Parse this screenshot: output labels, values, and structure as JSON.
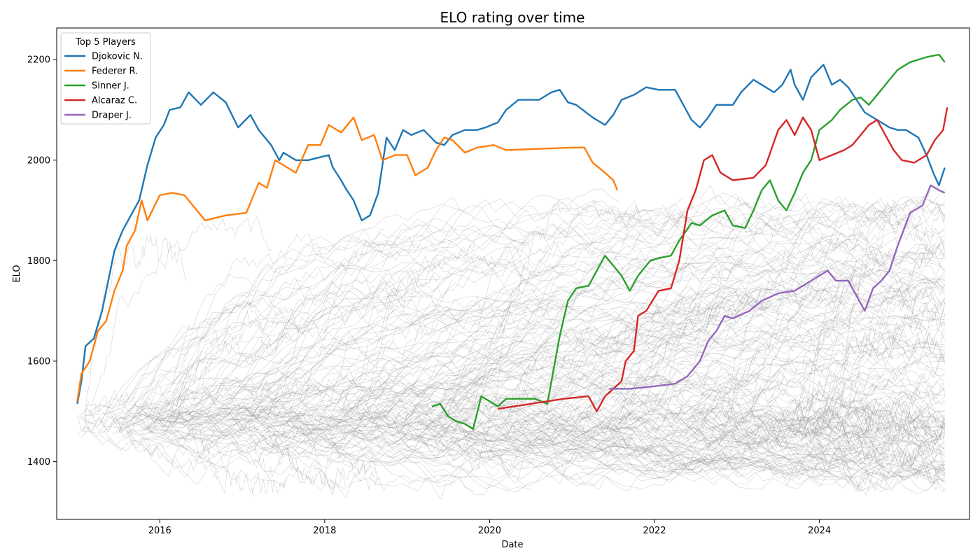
{
  "chart_data": {
    "type": "line",
    "title": "ELO rating over time",
    "xlabel": "Date",
    "ylabel": "ELO",
    "xlim": [
      2014.75,
      2025.82
    ],
    "ylim": [
      1285,
      2263
    ],
    "x_ticks": [
      2016,
      2018,
      2020,
      2022,
      2024
    ],
    "y_ticks": [
      1400,
      1600,
      1800,
      2000,
      2200
    ],
    "grid": false,
    "legend": {
      "title": "Top 5 Players",
      "placement": "top-left"
    },
    "background_series": {
      "color": "#808080",
      "description_count": 300
    },
    "series": [
      {
        "name": "Djokovic N.",
        "color": "#1f77b4",
        "points": [
          [
            2015.0,
            1515
          ],
          [
            2015.05,
            1560
          ],
          [
            2015.1,
            1630
          ],
          [
            2015.2,
            1645
          ],
          [
            2015.3,
            1700
          ],
          [
            2015.4,
            1780
          ],
          [
            2015.45,
            1820
          ],
          [
            2015.55,
            1860
          ],
          [
            2015.65,
            1890
          ],
          [
            2015.75,
            1920
          ],
          [
            2015.85,
            1990
          ],
          [
            2015.95,
            2045
          ],
          [
            2016.05,
            2070
          ],
          [
            2016.12,
            2100
          ],
          [
            2016.25,
            2105
          ],
          [
            2016.35,
            2135
          ],
          [
            2016.5,
            2110
          ],
          [
            2016.65,
            2135
          ],
          [
            2016.8,
            2115
          ],
          [
            2016.95,
            2065
          ],
          [
            2017.1,
            2090
          ],
          [
            2017.2,
            2060
          ],
          [
            2017.25,
            2050
          ],
          [
            2017.35,
            2030
          ],
          [
            2017.45,
            2000
          ],
          [
            2017.5,
            2015
          ],
          [
            2017.65,
            2000
          ],
          [
            2017.8,
            2000
          ],
          [
            2018.05,
            2010
          ],
          [
            2018.1,
            1985
          ],
          [
            2018.2,
            1960
          ],
          [
            2018.25,
            1945
          ],
          [
            2018.35,
            1920
          ],
          [
            2018.45,
            1880
          ],
          [
            2018.55,
            1890
          ],
          [
            2018.65,
            1935
          ],
          [
            2018.75,
            2045
          ],
          [
            2018.85,
            2020
          ],
          [
            2018.95,
            2060
          ],
          [
            2019.05,
            2050
          ],
          [
            2019.2,
            2060
          ],
          [
            2019.35,
            2035
          ],
          [
            2019.45,
            2030
          ],
          [
            2019.55,
            2050
          ],
          [
            2019.7,
            2060
          ],
          [
            2019.85,
            2060
          ],
          [
            2019.95,
            2065
          ],
          [
            2020.1,
            2075
          ],
          [
            2020.2,
            2100
          ],
          [
            2020.35,
            2120
          ],
          [
            2020.6,
            2120
          ],
          [
            2020.75,
            2135
          ],
          [
            2020.85,
            2140
          ],
          [
            2020.95,
            2115
          ],
          [
            2021.05,
            2110
          ],
          [
            2021.25,
            2085
          ],
          [
            2021.4,
            2070
          ],
          [
            2021.5,
            2090
          ],
          [
            2021.6,
            2120
          ],
          [
            2021.75,
            2130
          ],
          [
            2021.9,
            2145
          ],
          [
            2022.05,
            2140
          ],
          [
            2022.25,
            2140
          ],
          [
            2022.35,
            2110
          ],
          [
            2022.45,
            2080
          ],
          [
            2022.55,
            2065
          ],
          [
            2022.65,
            2085
          ],
          [
            2022.75,
            2110
          ],
          [
            2022.95,
            2110
          ],
          [
            2023.05,
            2135
          ],
          [
            2023.2,
            2160
          ],
          [
            2023.35,
            2145
          ],
          [
            2023.45,
            2135
          ],
          [
            2023.55,
            2150
          ],
          [
            2023.65,
            2180
          ],
          [
            2023.7,
            2150
          ],
          [
            2023.8,
            2120
          ],
          [
            2023.9,
            2165
          ],
          [
            2024.05,
            2190
          ],
          [
            2024.15,
            2150
          ],
          [
            2024.25,
            2160
          ],
          [
            2024.35,
            2145
          ],
          [
            2024.45,
            2120
          ],
          [
            2024.55,
            2095
          ],
          [
            2024.7,
            2080
          ],
          [
            2024.85,
            2065
          ],
          [
            2024.95,
            2060
          ],
          [
            2025.05,
            2060
          ],
          [
            2025.2,
            2045
          ],
          [
            2025.3,
            2010
          ],
          [
            2025.38,
            1975
          ],
          [
            2025.45,
            1950
          ],
          [
            2025.52,
            1985
          ]
        ]
      },
      {
        "name": "Federer R.",
        "color": "#ff7f0e",
        "points": [
          [
            2015.0,
            1520
          ],
          [
            2015.05,
            1575
          ],
          [
            2015.15,
            1600
          ],
          [
            2015.25,
            1660
          ],
          [
            2015.35,
            1680
          ],
          [
            2015.45,
            1740
          ],
          [
            2015.55,
            1780
          ],
          [
            2015.6,
            1830
          ],
          [
            2015.7,
            1860
          ],
          [
            2015.78,
            1920
          ],
          [
            2015.85,
            1880
          ],
          [
            2016.0,
            1930
          ],
          [
            2016.15,
            1935
          ],
          [
            2016.3,
            1930
          ],
          [
            2016.45,
            1900
          ],
          [
            2016.55,
            1880
          ],
          [
            2016.8,
            1890
          ],
          [
            2017.05,
            1895
          ],
          [
            2017.2,
            1955
          ],
          [
            2017.3,
            1945
          ],
          [
            2017.4,
            2000
          ],
          [
            2017.55,
            1985
          ],
          [
            2017.65,
            1975
          ],
          [
            2017.8,
            2030
          ],
          [
            2017.95,
            2030
          ],
          [
            2018.05,
            2070
          ],
          [
            2018.2,
            2055
          ],
          [
            2018.35,
            2085
          ],
          [
            2018.45,
            2040
          ],
          [
            2018.6,
            2050
          ],
          [
            2018.7,
            2000
          ],
          [
            2018.85,
            2010
          ],
          [
            2019.0,
            2010
          ],
          [
            2019.1,
            1970
          ],
          [
            2019.25,
            1985
          ],
          [
            2019.35,
            2020
          ],
          [
            2019.45,
            2045
          ],
          [
            2019.55,
            2040
          ],
          [
            2019.7,
            2015
          ],
          [
            2019.85,
            2025
          ],
          [
            2020.05,
            2030
          ],
          [
            2020.2,
            2020
          ],
          [
            2021.0,
            2025
          ],
          [
            2021.15,
            2025
          ],
          [
            2021.25,
            1995
          ],
          [
            2021.4,
            1975
          ],
          [
            2021.5,
            1960
          ],
          [
            2021.55,
            1940
          ]
        ]
      },
      {
        "name": "Sinner J.",
        "color": "#2ca02c",
        "points": [
          [
            2019.3,
            1510
          ],
          [
            2019.4,
            1515
          ],
          [
            2019.5,
            1490
          ],
          [
            2019.6,
            1480
          ],
          [
            2019.7,
            1475
          ],
          [
            2019.8,
            1465
          ],
          [
            2019.9,
            1530
          ],
          [
            2020.0,
            1520
          ],
          [
            2020.1,
            1510
          ],
          [
            2020.2,
            1525
          ],
          [
            2020.55,
            1525
          ],
          [
            2020.7,
            1515
          ],
          [
            2020.75,
            1560
          ],
          [
            2020.85,
            1650
          ],
          [
            2020.95,
            1720
          ],
          [
            2021.05,
            1745
          ],
          [
            2021.2,
            1750
          ],
          [
            2021.3,
            1780
          ],
          [
            2021.4,
            1810
          ],
          [
            2021.5,
            1790
          ],
          [
            2021.6,
            1770
          ],
          [
            2021.7,
            1740
          ],
          [
            2021.8,
            1770
          ],
          [
            2021.95,
            1800
          ],
          [
            2022.05,
            1805
          ],
          [
            2022.2,
            1810
          ],
          [
            2022.3,
            1840
          ],
          [
            2022.45,
            1875
          ],
          [
            2022.55,
            1870
          ],
          [
            2022.7,
            1890
          ],
          [
            2022.85,
            1900
          ],
          [
            2022.95,
            1870
          ],
          [
            2023.1,
            1865
          ],
          [
            2023.2,
            1900
          ],
          [
            2023.3,
            1940
          ],
          [
            2023.4,
            1960
          ],
          [
            2023.5,
            1920
          ],
          [
            2023.6,
            1900
          ],
          [
            2023.7,
            1935
          ],
          [
            2023.8,
            1975
          ],
          [
            2023.9,
            2000
          ],
          [
            2024.0,
            2060
          ],
          [
            2024.15,
            2080
          ],
          [
            2024.25,
            2100
          ],
          [
            2024.4,
            2120
          ],
          [
            2024.5,
            2125
          ],
          [
            2024.6,
            2110
          ],
          [
            2024.75,
            2140
          ],
          [
            2024.85,
            2160
          ],
          [
            2024.95,
            2180
          ],
          [
            2025.1,
            2195
          ],
          [
            2025.3,
            2205
          ],
          [
            2025.45,
            2210
          ],
          [
            2025.52,
            2195
          ]
        ]
      },
      {
        "name": "Alcaraz C.",
        "color": "#d62728",
        "points": [
          [
            2020.1,
            1505
          ],
          [
            2020.5,
            1515
          ],
          [
            2020.9,
            1525
          ],
          [
            2021.2,
            1530
          ],
          [
            2021.3,
            1500
          ],
          [
            2021.4,
            1530
          ],
          [
            2021.5,
            1545
          ],
          [
            2021.6,
            1560
          ],
          [
            2021.65,
            1600
          ],
          [
            2021.75,
            1620
          ],
          [
            2021.8,
            1690
          ],
          [
            2021.9,
            1700
          ],
          [
            2022.05,
            1740
          ],
          [
            2022.2,
            1745
          ],
          [
            2022.3,
            1800
          ],
          [
            2022.4,
            1900
          ],
          [
            2022.5,
            1940
          ],
          [
            2022.6,
            2000
          ],
          [
            2022.7,
            2010
          ],
          [
            2022.8,
            1975
          ],
          [
            2022.95,
            1960
          ],
          [
            2023.2,
            1965
          ],
          [
            2023.35,
            1990
          ],
          [
            2023.5,
            2060
          ],
          [
            2023.6,
            2080
          ],
          [
            2023.7,
            2050
          ],
          [
            2023.8,
            2085
          ],
          [
            2023.9,
            2060
          ],
          [
            2024.0,
            2000
          ],
          [
            2024.15,
            2010
          ],
          [
            2024.3,
            2020
          ],
          [
            2024.4,
            2030
          ],
          [
            2024.5,
            2050
          ],
          [
            2024.6,
            2070
          ],
          [
            2024.7,
            2080
          ],
          [
            2024.8,
            2050
          ],
          [
            2024.9,
            2020
          ],
          [
            2025.0,
            2000
          ],
          [
            2025.15,
            1995
          ],
          [
            2025.3,
            2010
          ],
          [
            2025.4,
            2040
          ],
          [
            2025.5,
            2060
          ],
          [
            2025.55,
            2105
          ]
        ]
      },
      {
        "name": "Draper J.",
        "color": "#9467bd",
        "points": [
          [
            2021.45,
            1545
          ],
          [
            2021.7,
            1545
          ],
          [
            2022.0,
            1550
          ],
          [
            2022.25,
            1555
          ],
          [
            2022.4,
            1570
          ],
          [
            2022.55,
            1600
          ],
          [
            2022.65,
            1640
          ],
          [
            2022.75,
            1660
          ],
          [
            2022.85,
            1690
          ],
          [
            2022.95,
            1685
          ],
          [
            2023.15,
            1700
          ],
          [
            2023.3,
            1720
          ],
          [
            2023.5,
            1735
          ],
          [
            2023.7,
            1740
          ],
          [
            2023.85,
            1755
          ],
          [
            2024.0,
            1770
          ],
          [
            2024.1,
            1780
          ],
          [
            2024.2,
            1760
          ],
          [
            2024.35,
            1760
          ],
          [
            2024.45,
            1730
          ],
          [
            2024.55,
            1700
          ],
          [
            2024.65,
            1745
          ],
          [
            2024.75,
            1760
          ],
          [
            2024.85,
            1780
          ],
          [
            2024.95,
            1830
          ],
          [
            2025.1,
            1895
          ],
          [
            2025.25,
            1910
          ],
          [
            2025.35,
            1950
          ],
          [
            2025.45,
            1940
          ],
          [
            2025.52,
            1935
          ]
        ]
      }
    ]
  }
}
